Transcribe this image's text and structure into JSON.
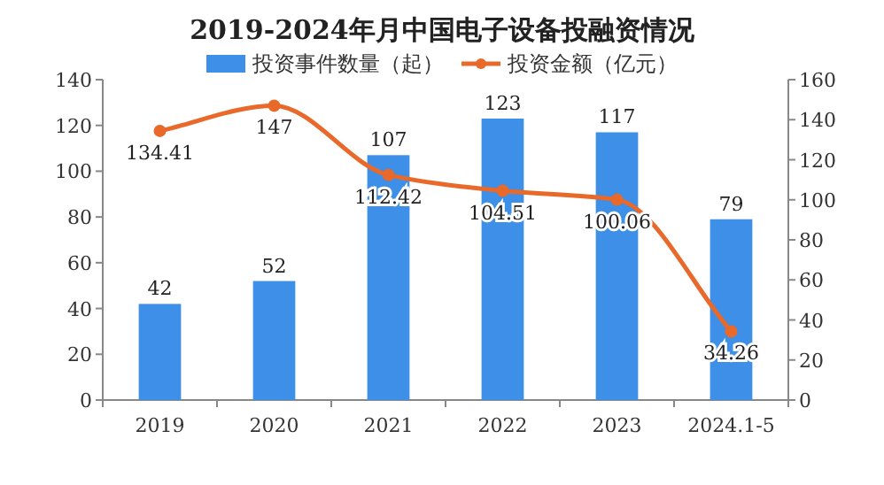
{
  "chart_data": {
    "type": "bar",
    "title": "2019-2024年月中国电子设备投融资情况",
    "categories": [
      "2019",
      "2020",
      "2021",
      "2022",
      "2023",
      "2024.1-5"
    ],
    "series": [
      {
        "name": "投资事件数量（起）",
        "color": "#3d8fe8",
        "values": [
          42,
          52,
          107,
          123,
          117,
          79
        ]
      },
      {
        "name": "投资金额（亿元）",
        "type": "line",
        "axis": "y2",
        "color": "#e8692a",
        "values": [
          134.41,
          147,
          112.42,
          104.51,
          100.06,
          34.26
        ]
      }
    ],
    "ylim": [
      0,
      140
    ],
    "yticks": [
      0,
      20,
      40,
      60,
      80,
      100,
      120,
      140
    ],
    "y2lim": [
      0,
      160
    ],
    "y2ticks": [
      0,
      20,
      40,
      60,
      80,
      100,
      120,
      140,
      160
    ],
    "marker": "circle",
    "data_labels": true,
    "legend": "top",
    "grid": false
  }
}
